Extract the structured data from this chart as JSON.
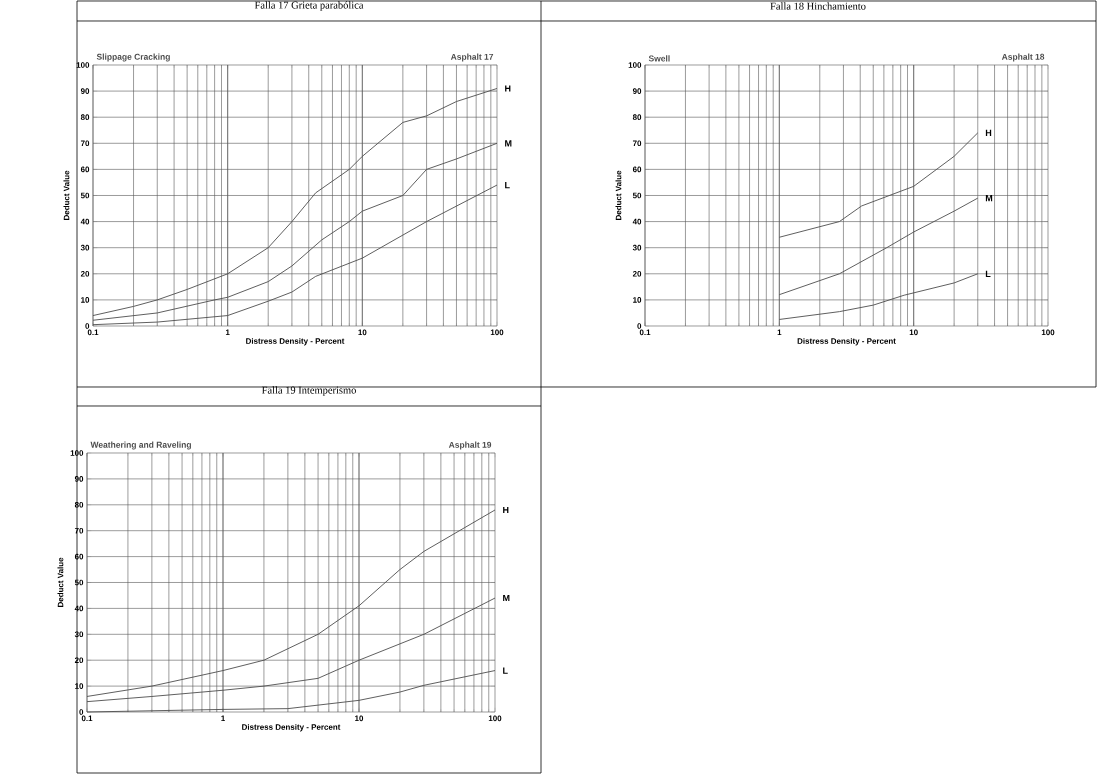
{
  "chart_data": [
    {
      "type": "line",
      "title": "Falla 17 Grieta parabólica",
      "subtitle": "Slippage Cracking",
      "annotations": [
        "Asphalt 17"
      ],
      "xlabel": "Distress Density - Percent",
      "ylabel": "Deduct Value",
      "log": "x",
      "grid": true,
      "xlim": [
        0.1,
        100
      ],
      "ylim": [
        0,
        100
      ],
      "xticks": [
        0.1,
        1,
        10,
        100
      ],
      "yticks": [
        0,
        10,
        20,
        30,
        40,
        50,
        60,
        70,
        80,
        90,
        100
      ],
      "series": [
        {
          "name": "H",
          "color": "#4d4d4d",
          "x": [
            0.1,
            0.2,
            0.3,
            0.5,
            1,
            2,
            3,
            4.5,
            8,
            10,
            20,
            30,
            50,
            100
          ],
          "values": [
            4,
            7.5,
            10,
            14,
            20,
            30,
            40,
            51,
            60,
            65,
            78,
            80.5,
            86,
            91
          ]
        },
        {
          "name": "M",
          "color": "#4d4d4d",
          "x": [
            0.1,
            0.3,
            0.8,
            1,
            2,
            3,
            5,
            8,
            10,
            20,
            30,
            50,
            100
          ],
          "values": [
            2.2,
            5,
            10,
            11,
            17,
            23,
            33,
            40,
            44,
            50,
            60,
            64,
            70
          ]
        },
        {
          "name": "L",
          "color": "#4d4d4d",
          "x": [
            0.1,
            0.3,
            1,
            2,
            3,
            4.5,
            10,
            30,
            100
          ],
          "values": [
            0.5,
            1.5,
            4,
            9.5,
            13,
            19,
            26,
            40,
            54
          ]
        }
      ]
    },
    {
      "type": "line",
      "title": "Falla 18 Hinchamiento",
      "subtitle": "Swell",
      "annotations": [
        "Asphalt 18"
      ],
      "xlabel": "Distress Density - Percent",
      "ylabel": "Deduct Value",
      "log": "x",
      "grid": true,
      "xlim": [
        0.1,
        100
      ],
      "ylim": [
        0,
        100
      ],
      "xticks": [
        0.1,
        1,
        10,
        100
      ],
      "yticks": [
        0,
        10,
        20,
        30,
        40,
        50,
        60,
        70,
        80,
        90,
        100
      ],
      "series": [
        {
          "name": "H",
          "color": "#4d4d4d",
          "x": [
            1,
            2.8,
            4.1,
            10,
            20,
            30
          ],
          "values": [
            34,
            40,
            46,
            53.5,
            65,
            74
          ]
        },
        {
          "name": "M",
          "color": "#4d4d4d",
          "x": [
            1,
            2.8,
            6.3,
            10,
            20,
            30
          ],
          "values": [
            12,
            20,
            30,
            36,
            44,
            49
          ]
        },
        {
          "name": "L",
          "color": "#4d4d4d",
          "x": [
            1,
            2.8,
            5,
            8.5,
            20,
            30
          ],
          "values": [
            2.5,
            5.5,
            8,
            11.8,
            16.5,
            20
          ]
        }
      ]
    },
    {
      "type": "line",
      "title": "Falla 19 Intemperismo",
      "subtitle": "Weathering and Raveling",
      "annotations": [
        "Asphalt 19"
      ],
      "xlabel": "Distress Density - Percent",
      "ylabel": "Deduct Value",
      "log": "x",
      "grid": true,
      "xlim": [
        0.1,
        100
      ],
      "ylim": [
        0,
        100
      ],
      "xticks": [
        0.1,
        1,
        10,
        100
      ],
      "yticks": [
        0,
        10,
        20,
        30,
        40,
        50,
        60,
        70,
        80,
        90,
        100
      ],
      "series": [
        {
          "name": "H",
          "color": "#4d4d4d",
          "x": [
            0.1,
            0.3,
            1,
            2,
            5,
            10,
            20,
            30,
            100
          ],
          "values": [
            6,
            10,
            16,
            20,
            30,
            41,
            55,
            62,
            78
          ]
        },
        {
          "name": "M",
          "color": "#4d4d4d",
          "x": [
            0.1,
            0.3,
            1,
            2,
            5,
            10,
            30,
            100
          ],
          "values": [
            4,
            6,
            8.4,
            10,
            13,
            20,
            30,
            44
          ]
        },
        {
          "name": "L",
          "color": "#4d4d4d",
          "x": [
            0.1,
            1,
            3,
            10,
            20,
            30,
            100
          ],
          "values": [
            0,
            1,
            1.3,
            4.5,
            7.7,
            10.3,
            16
          ]
        }
      ]
    }
  ]
}
